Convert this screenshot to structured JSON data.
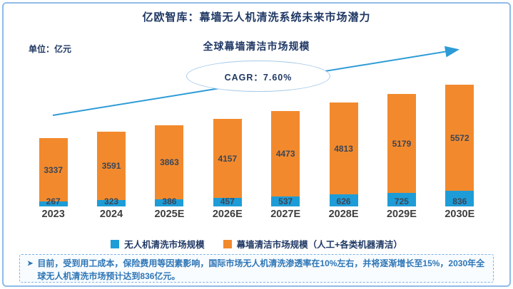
{
  "header": {
    "title": "亿欧智库：幕墙无人机清洗系统未来市场潜力",
    "unit_label": "单位：亿元",
    "subtitle": "全球幕墙清洁市场规模"
  },
  "chart_data": {
    "type": "bar",
    "stacked": true,
    "title": "全球幕墙清洁市场规模",
    "unit": "亿元",
    "categories": [
      "2023",
      "2024",
      "2025E",
      "2026E",
      "2027E",
      "2028E",
      "2029E",
      "2030E"
    ],
    "series": [
      {
        "name": "无人机清洗市场规模",
        "color": "#1E9CD7",
        "values": [
          267,
          323,
          386,
          457,
          537,
          626,
          725,
          836
        ]
      },
      {
        "name": "幕墙清洁市场规模（人工+各类机器清洁）",
        "color": "#F28A2D",
        "values": [
          3337,
          3591,
          3863,
          4157,
          4473,
          4813,
          5179,
          5572
        ]
      }
    ],
    "annotation": {
      "cagr_label": "CAGR：7.60%"
    },
    "legend_position": "bottom",
    "ylim": [
      0,
      6500
    ],
    "grid": false
  },
  "legend": {
    "items": [
      {
        "label": "无人机清洗市场规模",
        "color": "#1E9CD7"
      },
      {
        "label": "幕墙清洁市场规模（人工+各类机器清洁）",
        "color": "#F28A2D"
      }
    ]
  },
  "note": {
    "marker": "➤",
    "text": "目前，受到用工成本，保险费用等因素影响，国际市场无人机清洗渗透率在10%左右，并将逐渐增长至15%，2030年全球无人机清洗市场预计达到836亿元。"
  },
  "colors": {
    "drone_bar": "#1E9CD7",
    "curtain_bar": "#F28A2D",
    "title_text": "#1F3864",
    "note_text": "#2E75B6",
    "frame_border": "#8FBBE8",
    "arrow": "#2E9BD6"
  }
}
